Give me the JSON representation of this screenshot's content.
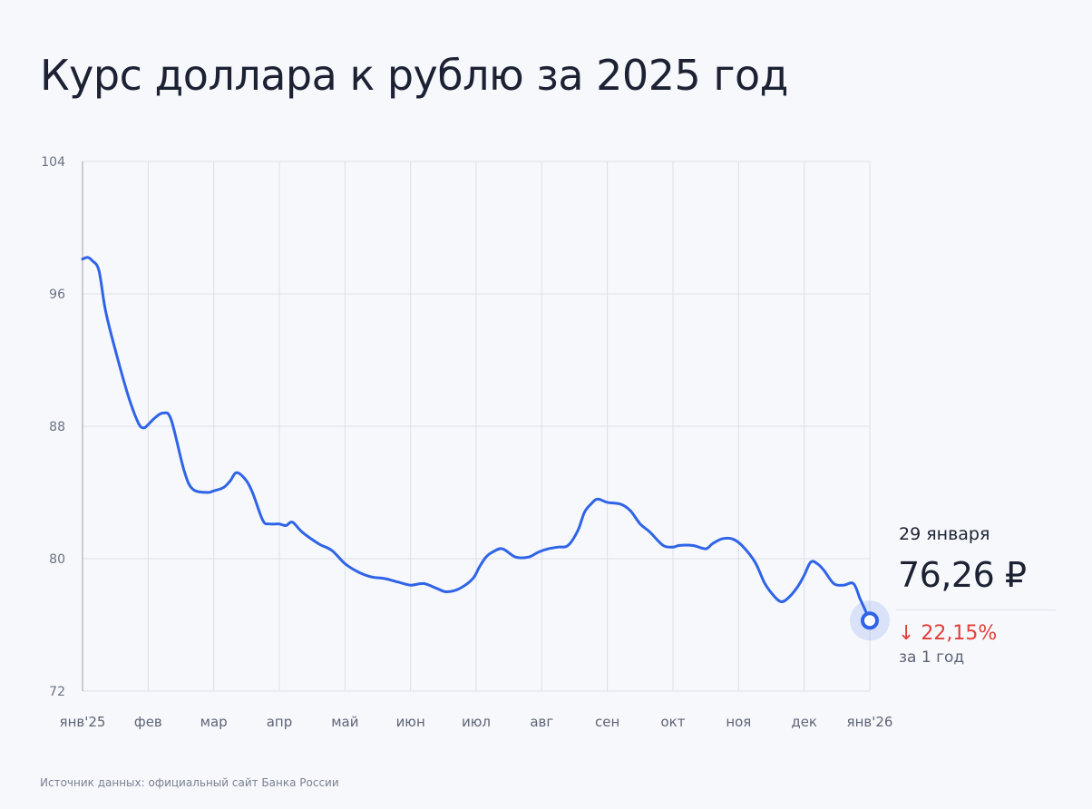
{
  "chart_data": {
    "type": "line",
    "title": "Курс доллара к рублю за 2025 год",
    "xlabel": "",
    "ylabel": "",
    "ylim": [
      72,
      104
    ],
    "y_ticks": [
      "104",
      "96",
      "88",
      "80",
      "72"
    ],
    "x_tick_labels": [
      "янв'25",
      "фев",
      "мар",
      "апр",
      "май",
      "июн",
      "июл",
      "авг",
      "сен",
      "окт",
      "ноя",
      "дек",
      "янв'26"
    ],
    "grid": true,
    "series": [
      {
        "color": "#2f64e8",
        "x": [
          0,
          0.08,
          0.15,
          0.25,
          0.35,
          0.5,
          0.7,
          0.85,
          0.93,
          1.0,
          1.1,
          1.23,
          1.35,
          1.55,
          1.68,
          1.9,
          2.0,
          2.15,
          2.25,
          2.35,
          2.5,
          2.6,
          2.75,
          2.85,
          3.0,
          3.1,
          3.2,
          3.35,
          3.6,
          3.8,
          4.0,
          4.2,
          4.4,
          4.6,
          4.8,
          5.0,
          5.2,
          5.4,
          5.55,
          5.75,
          5.95,
          6.05,
          6.15,
          6.25,
          6.4,
          6.6,
          6.8,
          6.95,
          7.1,
          7.25,
          7.4,
          7.55,
          7.65,
          7.75,
          7.85,
          8.0,
          8.2,
          8.35,
          8.5,
          8.65,
          8.85,
          9.0,
          9.1,
          9.3,
          9.5,
          9.6,
          9.75,
          9.9,
          10.05,
          10.25,
          10.4,
          10.55,
          10.65,
          10.75,
          10.9,
          11.0,
          11.1,
          11.2,
          11.3,
          11.45,
          11.6,
          11.75,
          11.85,
          11.93,
          12.0
        ],
        "values": [
          98.1,
          98.2,
          98.0,
          97.4,
          95.0,
          92.6,
          89.8,
          88.2,
          87.9,
          88.1,
          88.5,
          88.8,
          88.4,
          85.3,
          84.2,
          84.0,
          84.1,
          84.3,
          84.7,
          85.2,
          84.7,
          83.9,
          82.3,
          82.1,
          82.1,
          82.0,
          82.2,
          81.6,
          80.9,
          80.5,
          79.7,
          79.2,
          78.9,
          78.8,
          78.6,
          78.4,
          78.5,
          78.2,
          78.0,
          78.2,
          78.8,
          79.5,
          80.1,
          80.4,
          80.6,
          80.1,
          80.1,
          80.4,
          80.6,
          80.7,
          80.8,
          81.7,
          82.8,
          83.3,
          83.6,
          83.4,
          83.3,
          82.9,
          82.1,
          81.6,
          80.8,
          80.7,
          80.8,
          80.8,
          80.6,
          80.9,
          81.2,
          81.2,
          80.8,
          79.8,
          78.5,
          77.7,
          77.4,
          77.6,
          78.3,
          79.0,
          79.8,
          79.7,
          79.3,
          78.5,
          78.4,
          78.5,
          77.6,
          76.9,
          76.26
        ]
      }
    ],
    "annotation": {
      "date": "29 января",
      "value": "76,26 ₽",
      "change": "↓ 22,15%",
      "period": "за 1 год"
    }
  },
  "footer": {
    "source": "Источник данных: официальный сайт Банка России"
  }
}
